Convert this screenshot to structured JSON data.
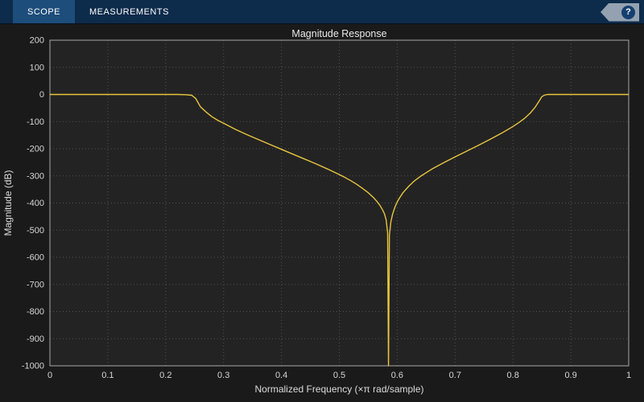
{
  "toolbar": {
    "tabs": [
      {
        "label": "SCOPE",
        "selected": true
      },
      {
        "label": "MEASUREMENTS",
        "selected": false
      }
    ],
    "help_label": "?"
  },
  "colors": {
    "toolbar_bg": "#0d2b4b",
    "tab_selected": "#1d4d7a",
    "plot_bg": "#1a1a1a",
    "axes_bg": "#232323",
    "grid_color": "#525252",
    "axis_color": "#a8a8a8",
    "help_badge": "#93a1b0",
    "help_circle": "#14406f",
    "line_color": "#e8c63f"
  },
  "chart_data": {
    "type": "line",
    "title": "Magnitude Response",
    "xlabel": "Normalized Frequency (×π rad/sample)",
    "ylabel": "Magnitude (dB)",
    "xlim": [
      0,
      1
    ],
    "ylim": [
      -1000,
      200
    ],
    "grid": true,
    "legend_position": "none",
    "xticks": [
      0,
      0.1,
      0.2,
      0.3,
      0.4,
      0.5,
      0.6,
      0.7,
      0.8,
      0.9,
      1
    ],
    "xtick_labels": [
      "0",
      "0.1",
      "0.2",
      "0.3",
      "0.4",
      "0.5",
      "0.6",
      "0.7",
      "0.8",
      "0.9",
      "1"
    ],
    "yticks": [
      200,
      100,
      0,
      -100,
      -200,
      -300,
      -400,
      -500,
      -600,
      -700,
      -800,
      -900,
      -1000
    ],
    "ytick_labels": [
      "200",
      "100",
      "0",
      "-100",
      "-200",
      "-300",
      "-400",
      "-500",
      "-600",
      "-700",
      "-800",
      "-900",
      "-1000"
    ],
    "series": [
      {
        "x": [
          0,
          0.05,
          0.1,
          0.15,
          0.2,
          0.22,
          0.235,
          0.245,
          0.252,
          0.26,
          0.27,
          0.28,
          0.29,
          0.3,
          0.32,
          0.34,
          0.36,
          0.38,
          0.4,
          0.42,
          0.44,
          0.46,
          0.48,
          0.5,
          0.51,
          0.52,
          0.53,
          0.54,
          0.55,
          0.56,
          0.565,
          0.57,
          0.575,
          0.578,
          0.581,
          0.5835,
          0.585,
          0.5865,
          0.589,
          0.592,
          0.596,
          0.6,
          0.605,
          0.61,
          0.62,
          0.63,
          0.64,
          0.66,
          0.68,
          0.7,
          0.72,
          0.74,
          0.76,
          0.78,
          0.8,
          0.81,
          0.82,
          0.83,
          0.838,
          0.845,
          0.85,
          0.855,
          0.86,
          0.88,
          0.9,
          0.95,
          1.0
        ],
        "y": [
          0,
          0,
          0,
          0,
          0,
          0,
          -1,
          -3,
          -15,
          -45,
          -65,
          -82,
          -95,
          -106,
          -128,
          -148,
          -166,
          -184,
          -202,
          -220,
          -238,
          -256,
          -275,
          -295,
          -306,
          -318,
          -331,
          -346,
          -362,
          -382,
          -394,
          -408,
          -426,
          -440,
          -462,
          -510,
          -1000,
          -520,
          -470,
          -442,
          -416,
          -396,
          -378,
          -362,
          -338,
          -318,
          -302,
          -275,
          -252,
          -230,
          -209,
          -188,
          -166,
          -143,
          -118,
          -104,
          -88,
          -68,
          -48,
          -25,
          -8,
          -2,
          0,
          0,
          0,
          0,
          0
        ]
      }
    ]
  }
}
